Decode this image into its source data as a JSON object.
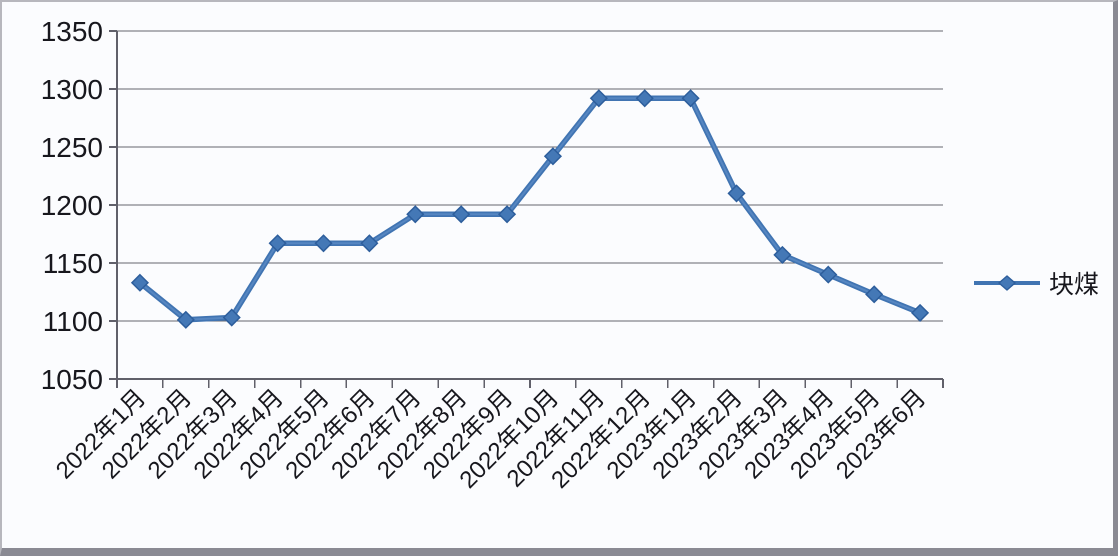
{
  "chart_data": {
    "type": "line",
    "title": "",
    "xlabel": "",
    "ylabel": "",
    "x": [
      "2022年1月",
      "2022年2月",
      "2022年3月",
      "2022年4月",
      "2022年5月",
      "2022年6月",
      "2022年7月",
      "2022年8月",
      "2022年9月",
      "2022年10月",
      "2022年11月",
      "2022年12月",
      "2023年1月",
      "2023年2月",
      "2023年3月",
      "2023年4月",
      "2023年5月",
      "2023年6月"
    ],
    "series": [
      {
        "name": "块煤",
        "values": [
          1133,
          1101,
          1103,
          1167,
          1167,
          1167,
          1192,
          1192,
          1192,
          1242,
          1292,
          1292,
          1292,
          1210,
          1157,
          1140,
          1123,
          1107
        ],
        "marker": "diamond"
      }
    ],
    "ylim": [
      1050,
      1350
    ],
    "yticks": [
      1050,
      1100,
      1150,
      1200,
      1250,
      1300,
      1350
    ],
    "grid": true,
    "legend_position": "right",
    "colors": {
      "line": "#4074b2",
      "line_highlight": "#6290ca",
      "marker": "#4478b6",
      "marker_edge": "#2d5e9c",
      "grid": "#66666f",
      "axis": "#60606a",
      "text": "#17171d",
      "background": "#fbfcfe",
      "frame_border": "#8a8a93"
    }
  }
}
